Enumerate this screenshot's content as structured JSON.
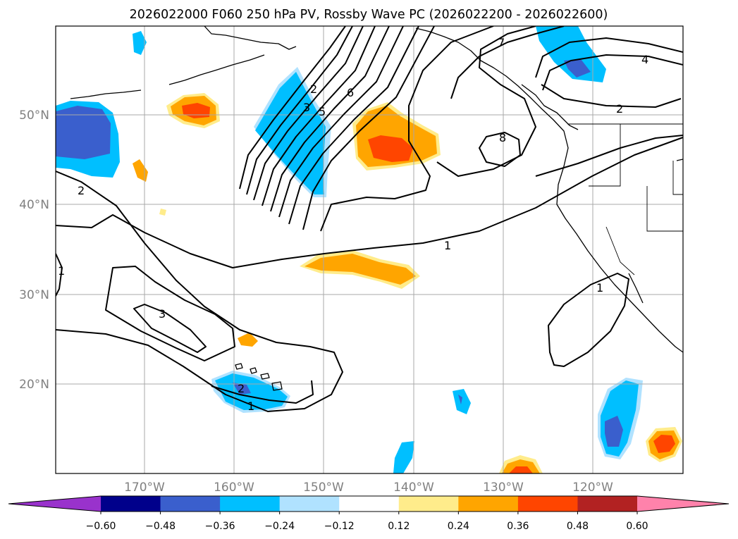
{
  "title": "2026022000 F060 250 hPa PV, Rossby Wave PC (2026022200 - 2026022600)",
  "longitude_labels": [
    "170°W",
    "160°W",
    "150°W",
    "140°W",
    "130°W",
    "120°W"
  ],
  "latitude_labels": [
    "50°N",
    "40°N",
    "30°N",
    "20°N"
  ],
  "colorbar": {
    "tick_labels": [
      "−0.60",
      "−0.48",
      "−0.36",
      "−0.24",
      "−0.12",
      "0.12",
      "0.24",
      "0.36",
      "0.48",
      "0.60"
    ],
    "colors": [
      "#9932cc",
      "#00008b",
      "#3a5fcd",
      "#00bfff",
      "#b0e2ff",
      "#ffffff",
      "#ffec8b",
      "#ffa500",
      "#ff4500",
      "#b22222",
      "#ff82ab"
    ]
  },
  "contour_labels": [
    "2",
    "3",
    "5",
    "6",
    "7",
    "4",
    "2",
    "8",
    "1",
    "2",
    "1",
    "3",
    "1",
    "2",
    "1"
  ],
  "chart_data": {
    "type": "contour map",
    "title": "2026022000 F060 250 hPa PV, Rossby Wave PC (2026022200 - 2026022600)",
    "region": {
      "lon_range": [
        "180°W",
        "110°W"
      ],
      "lat_range": [
        "10°N",
        "60°N"
      ]
    },
    "fields": [
      {
        "name": "250 hPa PV",
        "style": "black contour lines",
        "levels_labeled": [
          1,
          2,
          3,
          4,
          5,
          6,
          7,
          8
        ]
      },
      {
        "name": "Rossby Wave PC",
        "style": "filled shading",
        "levels": [
          -0.6,
          -0.48,
          -0.36,
          -0.24,
          -0.12,
          0.12,
          0.24,
          0.36,
          0.48,
          0.6
        ]
      }
    ]
  }
}
